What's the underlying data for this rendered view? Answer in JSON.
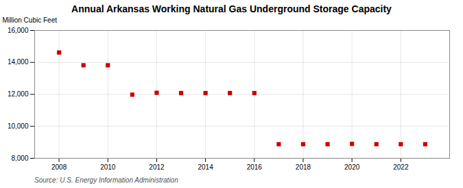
{
  "chart_data": {
    "type": "scatter",
    "title": "Annual Arkansas Working Natural Gas Underground Storage Capacity",
    "ylabel": "Million Cubic Feet",
    "source": "Source: U.S. Energy Information Administration",
    "x": [
      2008,
      2009,
      2010,
      2011,
      2012,
      2013,
      2014,
      2015,
      2016,
      2017,
      2018,
      2019,
      2020,
      2021,
      2022,
      2023
    ],
    "values": [
      14620,
      13820,
      13820,
      11980,
      12100,
      12080,
      12080,
      12080,
      12080,
      8880,
      8880,
      8880,
      8900,
      8880,
      8880,
      8880
    ],
    "color": "#cc0000",
    "marker": "square",
    "xlim": [
      2007,
      2024
    ],
    "xticks": [
      2008,
      2010,
      2012,
      2014,
      2016,
      2018,
      2020,
      2022
    ],
    "ylim": [
      8000,
      16000
    ],
    "yticks": [
      {
        "value": 8000,
        "label": "8,000"
      },
      {
        "value": 10000,
        "label": "10,000"
      },
      {
        "value": 12000,
        "label": "12,000"
      },
      {
        "value": 14000,
        "label": "14,000"
      },
      {
        "value": 16000,
        "label": "16,000"
      }
    ],
    "grid": true
  }
}
